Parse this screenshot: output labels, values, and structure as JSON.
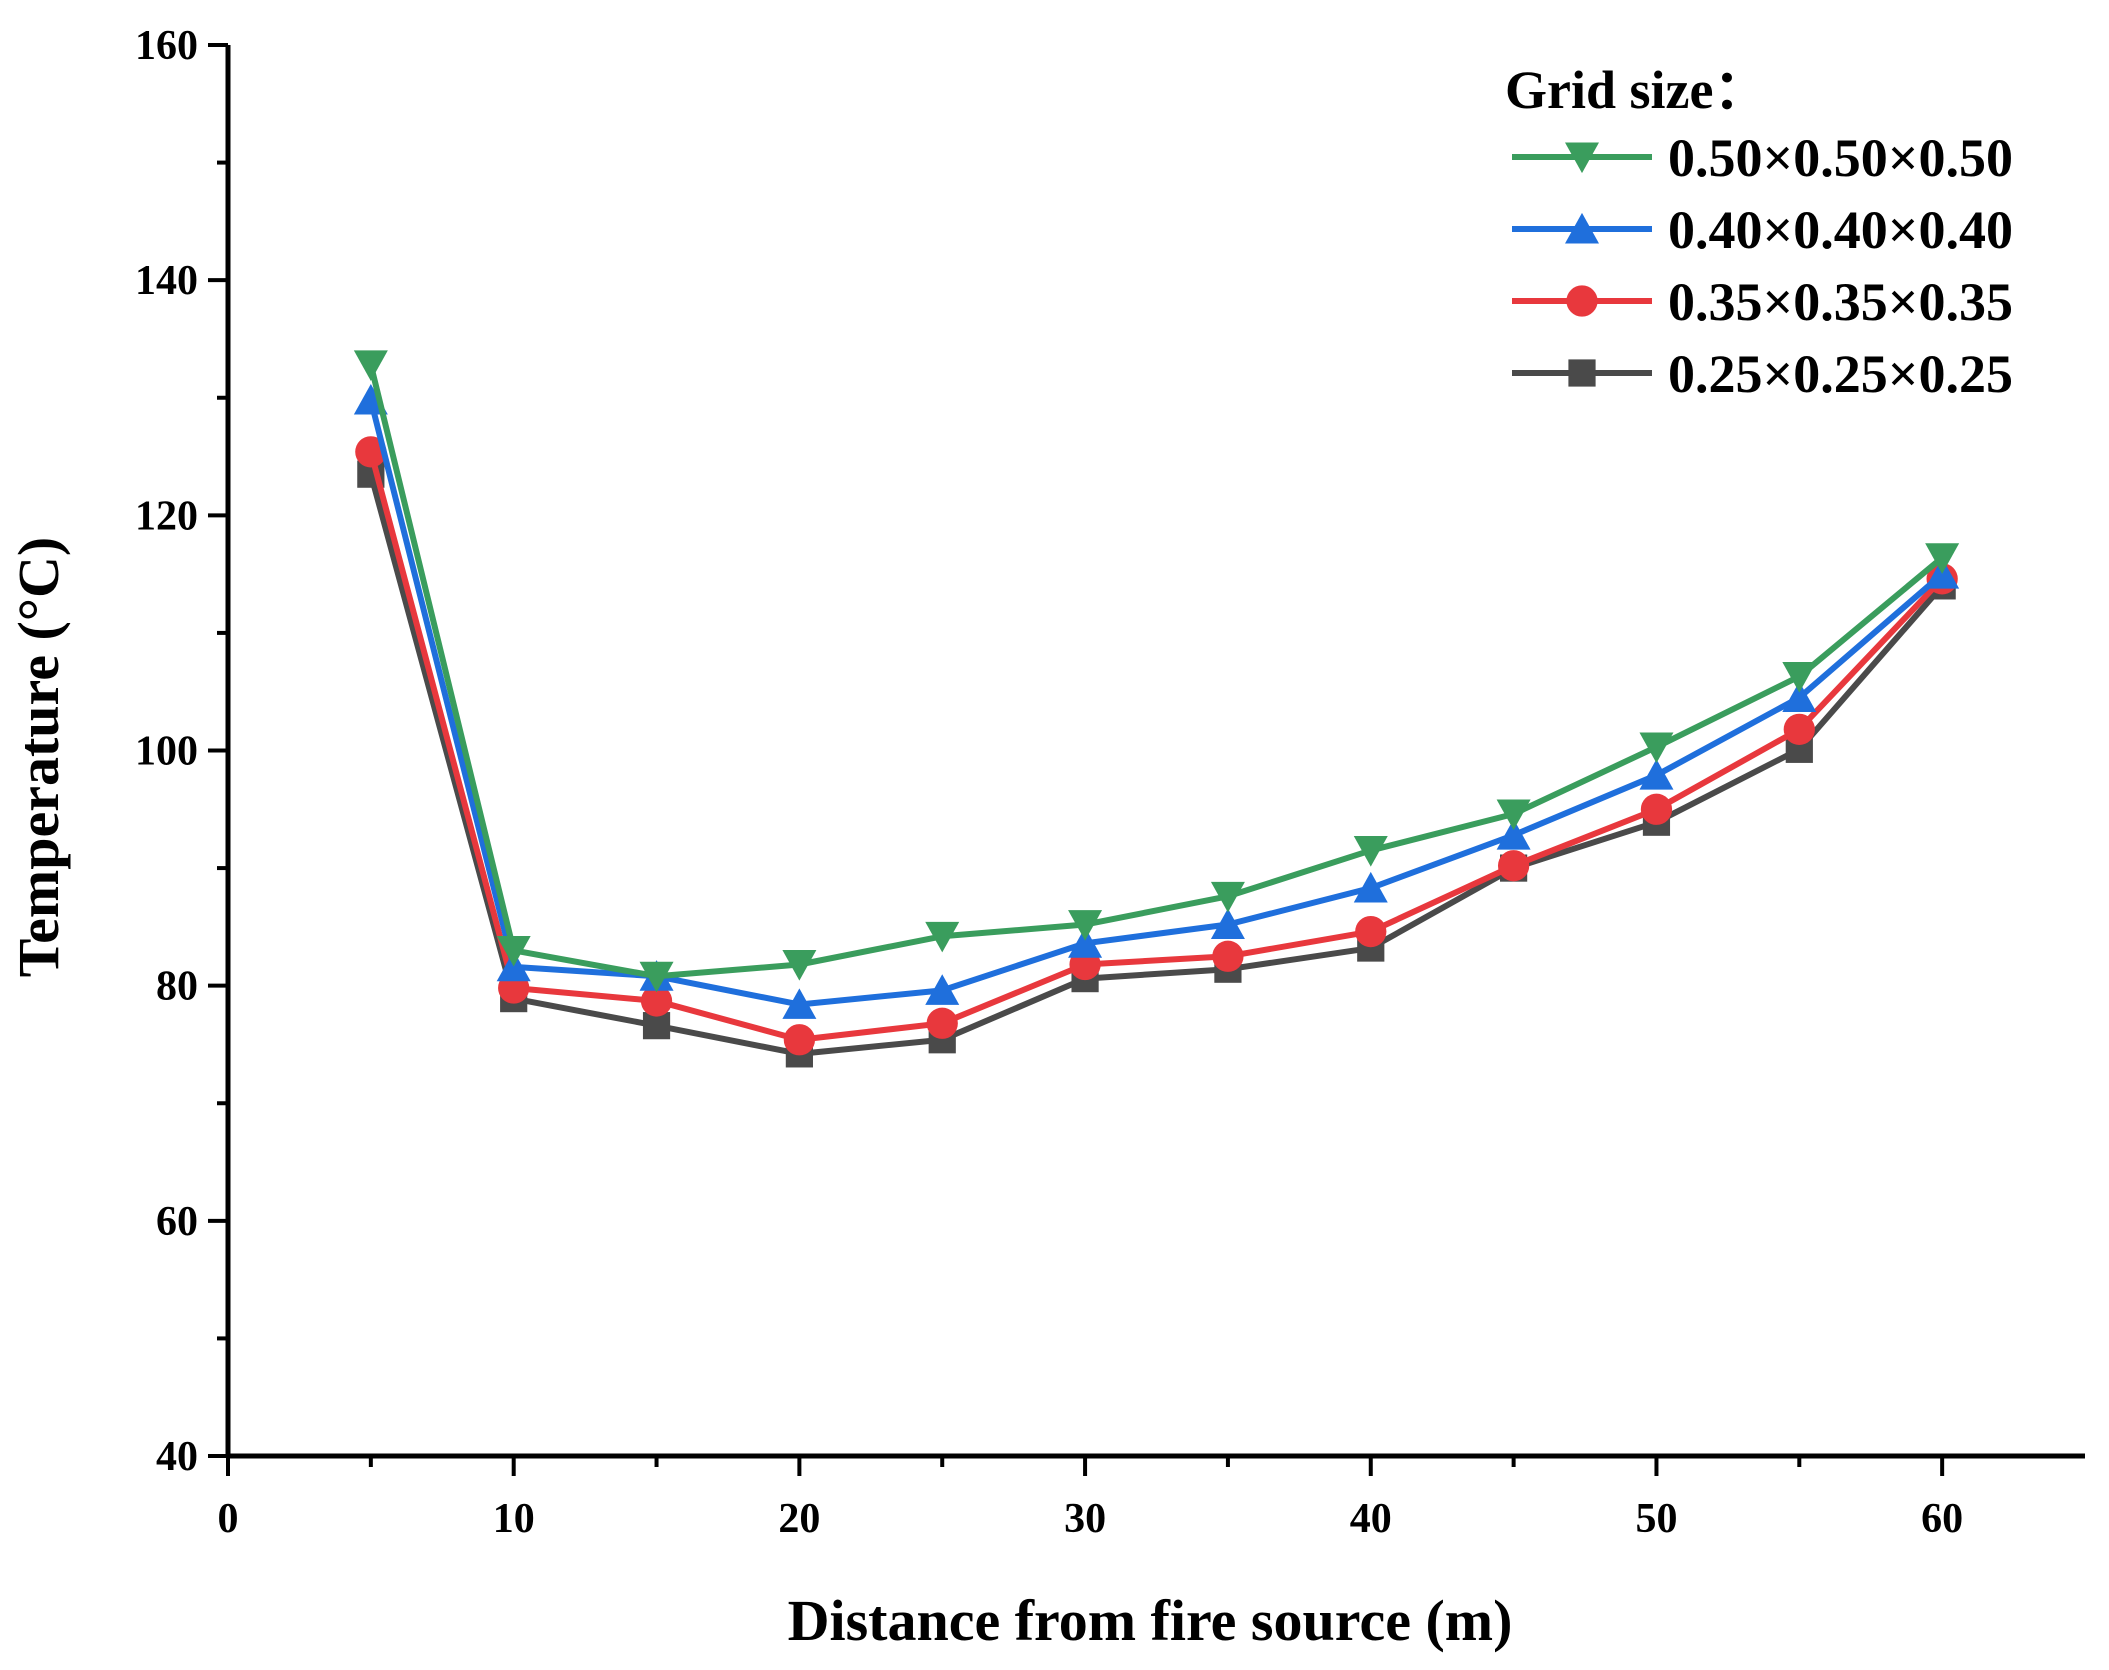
{
  "chart_data": {
    "type": "line",
    "title": "",
    "xlabel": "Distance from fire source (m)",
    "ylabel": "Temperature (°C)",
    "xlim": [
      0,
      65
    ],
    "ylim": [
      40,
      160
    ],
    "xticks": [
      0,
      10,
      20,
      30,
      40,
      50,
      60
    ],
    "yticks": [
      40,
      60,
      80,
      100,
      120,
      140,
      160
    ],
    "legend_title": "Grid size：",
    "legend_position": "top-right",
    "x": [
      5,
      10,
      15,
      20,
      25,
      30,
      35,
      40,
      45,
      50,
      55,
      60
    ],
    "series": [
      {
        "name": "0.50×0.50×0.50",
        "color": "#3a9d5d",
        "marker": "triangle-down",
        "values": [
          132.8,
          83.0,
          80.8,
          81.8,
          84.2,
          85.2,
          87.6,
          91.5,
          94.6,
          100.3,
          106.3,
          116.4
        ]
      },
      {
        "name": "0.40×0.40×0.40",
        "color": "#1f6fdc",
        "marker": "triangle-up",
        "values": [
          129.8,
          81.6,
          80.8,
          78.4,
          79.6,
          83.6,
          85.2,
          88.3,
          92.8,
          97.9,
          104.5,
          115.0
        ]
      },
      {
        "name": "0.35×0.35×0.35",
        "color": "#e8383d",
        "marker": "circle",
        "values": [
          125.4,
          79.8,
          78.7,
          75.4,
          76.8,
          81.8,
          82.5,
          84.6,
          90.2,
          95.0,
          101.8,
          114.6
        ]
      },
      {
        "name": "0.25×0.25×0.25",
        "color": "#4a4a4a",
        "marker": "square",
        "values": [
          123.5,
          78.9,
          76.6,
          74.2,
          75.4,
          80.6,
          81.4,
          83.2,
          90.0,
          93.9,
          100.1,
          114.0
        ]
      }
    ]
  }
}
